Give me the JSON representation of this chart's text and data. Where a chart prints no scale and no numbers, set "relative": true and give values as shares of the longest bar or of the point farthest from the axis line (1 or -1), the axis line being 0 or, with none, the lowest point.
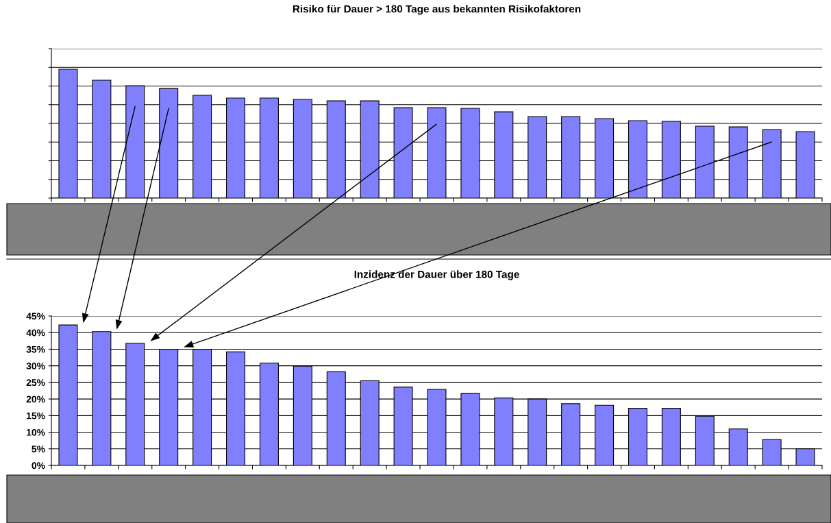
{
  "chart_data": [
    {
      "type": "bar",
      "title": "Risiko für Dauer > 180 Tage aus bekannten Risikofaktoren",
      "relative": true,
      "grid": "y",
      "tick_labels": false,
      "color": "#8080ff",
      "categories": [
        null,
        null,
        null,
        null,
        null,
        null,
        null,
        null,
        null,
        null,
        null,
        null,
        null,
        null,
        null,
        null,
        null,
        null,
        null,
        null,
        null,
        null,
        null
      ],
      "values": [
        1,
        0.915,
        0.872,
        0.851,
        0.798,
        0.777,
        0.777,
        0.766,
        0.755,
        0.755,
        0.702,
        0.702,
        0.697,
        0.67,
        0.633,
        0.633,
        0.617,
        0.601,
        0.596,
        0.559,
        0.553,
        0.532,
        0.516
      ]
    },
    {
      "type": "bar",
      "title": "Inzidenz der Dauer über 180 Tage",
      "grid": "y",
      "tick_labels": "y",
      "color": "#8080ff",
      "categories": [
        null,
        null,
        null,
        null,
        null,
        null,
        null,
        null,
        null,
        null,
        null,
        null,
        null,
        null,
        null,
        null,
        null,
        null,
        null,
        null,
        null,
        null,
        null
      ],
      "values": [
        42.3,
        40.3,
        36.8,
        35,
        35,
        34.2,
        30.8,
        29.9,
        28.2,
        25.5,
        23.6,
        22.9,
        21.7,
        20.3,
        20,
        18.6,
        18.1,
        17.2,
        17.2,
        14.8,
        11,
        7.8,
        5
      ],
      "ylim": [
        0,
        45
      ],
      "yticks": [
        {
          "value": 0,
          "label": "0%"
        },
        {
          "value": 5,
          "label": "5%"
        },
        {
          "value": 10,
          "label": "10%"
        },
        {
          "value": 15,
          "label": "15%"
        },
        {
          "value": 20,
          "label": "20%"
        },
        {
          "value": 25,
          "label": "25%"
        },
        {
          "value": 30,
          "label": "30%"
        },
        {
          "value": 35,
          "label": "35%"
        },
        {
          "value": 40,
          "label": "40%"
        },
        {
          "value": 45,
          "label": "45%"
        }
      ]
    }
  ]
}
